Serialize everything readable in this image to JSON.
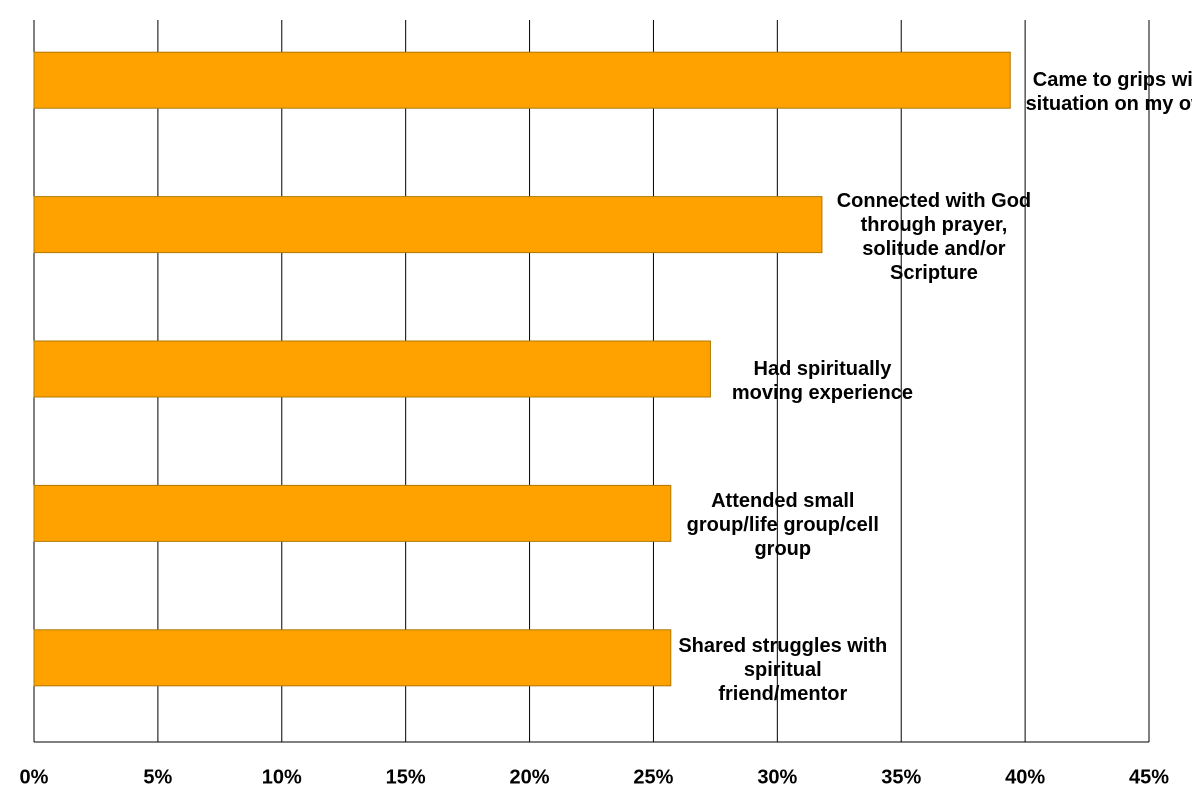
{
  "chart_data": {
    "type": "barh",
    "categories": [
      "Came to grips with situation on my own",
      "Connected with God through prayer, solitude and/or Scripture",
      "Had spiritually moving experience",
      "Attended small group/life group/cell group",
      "Shared struggles with spiritual friend/mentor"
    ],
    "values": [
      39.4,
      31.8,
      27.3,
      25.7,
      25.7
    ],
    "color": "#ffa200",
    "xlim": [
      0,
      45
    ],
    "xticks": [
      {
        "value": 0,
        "label": "0%"
      },
      {
        "value": 5,
        "label": "5%"
      },
      {
        "value": 10,
        "label": "10%"
      },
      {
        "value": 15,
        "label": "15%"
      },
      {
        "value": 20,
        "label": "20%"
      },
      {
        "value": 25,
        "label": "25%"
      },
      {
        "value": 30,
        "label": "30%"
      },
      {
        "value": 35,
        "label": "35%"
      },
      {
        "value": 40,
        "label": "40%"
      },
      {
        "value": 45,
        "label": "45%"
      }
    ],
    "grid": true
  }
}
